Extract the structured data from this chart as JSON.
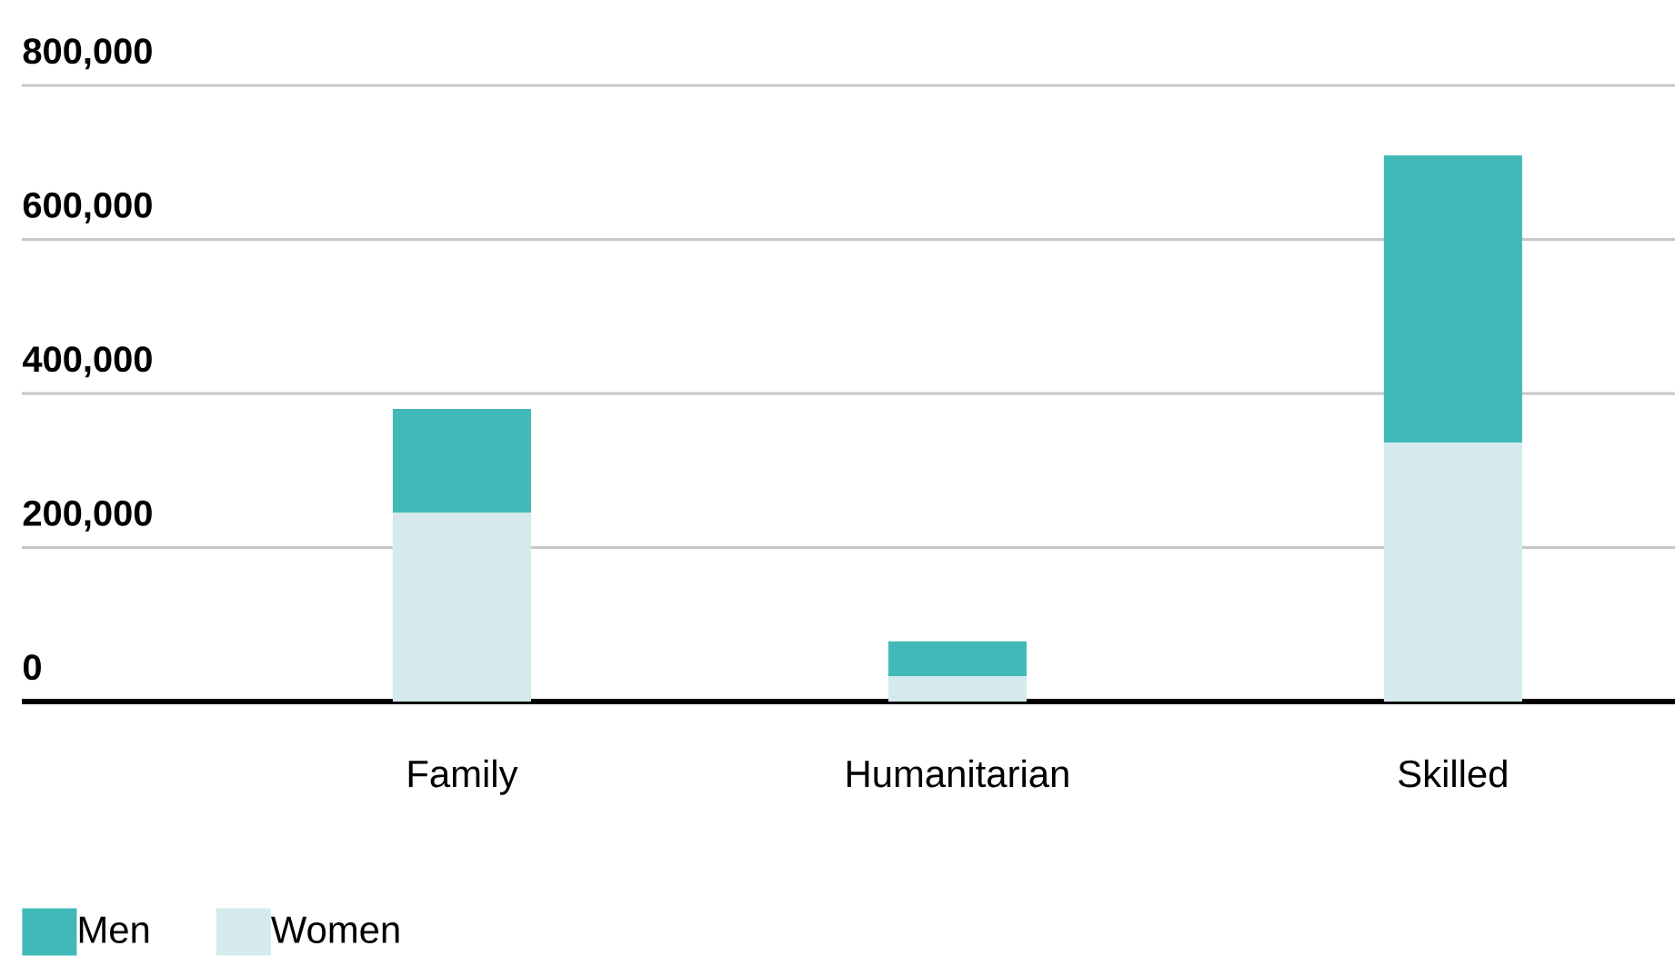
{
  "chart_data": {
    "type": "bar",
    "stacked": true,
    "categories": [
      "Family",
      "Humanitarian",
      "Skilled"
    ],
    "series": [
      {
        "name": "Women",
        "color": "#d5eaed",
        "values": [
          245000,
          33000,
          336000
        ]
      },
      {
        "name": "Men",
        "color": "#41b9b8",
        "values": [
          135000,
          45000,
          373000
        ]
      }
    ],
    "ylim": [
      0,
      800000
    ],
    "yticks": [
      0,
      {
        "value": 200000,
        "label": "200,000"
      },
      {
        "value": 400000,
        "label": "400,000"
      },
      {
        "value": 600000,
        "label": "600,000"
      },
      {
        "value": 800000,
        "label": "800,000"
      }
    ],
    "grid": "y",
    "legend": "bottom left"
  }
}
